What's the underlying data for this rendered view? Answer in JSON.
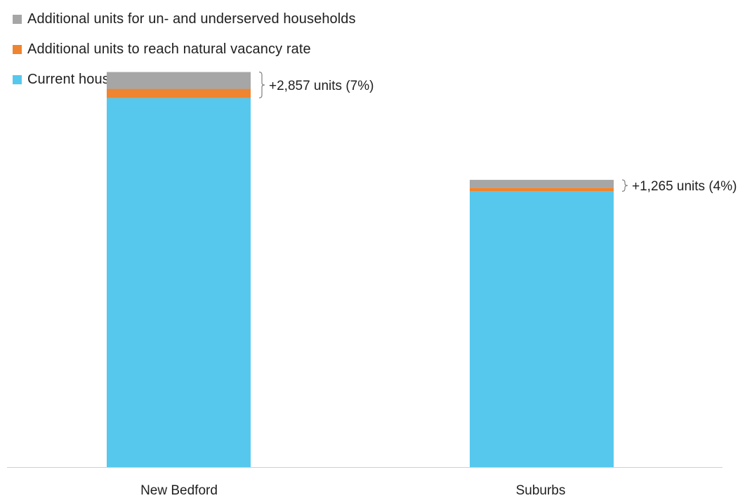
{
  "chart_data": {
    "type": "bar",
    "stacked": true,
    "categories": [
      "New Bedford",
      "Suburbs"
    ],
    "series": [
      {
        "name": "Current housing stock",
        "color": "#56c8ed",
        "values": [
          40720,
          30420
        ]
      },
      {
        "name": "Additional units to reach natural vacancy rate",
        "color": "#ef8530",
        "values": [
          1000,
          400
        ]
      },
      {
        "name": "Additional units for un- and underserved households",
        "color": "#a6a6a6",
        "values": [
          1857,
          865
        ]
      }
    ],
    "legend_order": [
      2,
      1,
      0
    ],
    "annotations": [
      "+2,857 units (7%)",
      "+1,265 units (4%)"
    ],
    "ylim": [
      0,
      43000
    ],
    "grid": false,
    "legend_position": "top-left",
    "title": "",
    "xlabel": "",
    "ylabel": ""
  }
}
